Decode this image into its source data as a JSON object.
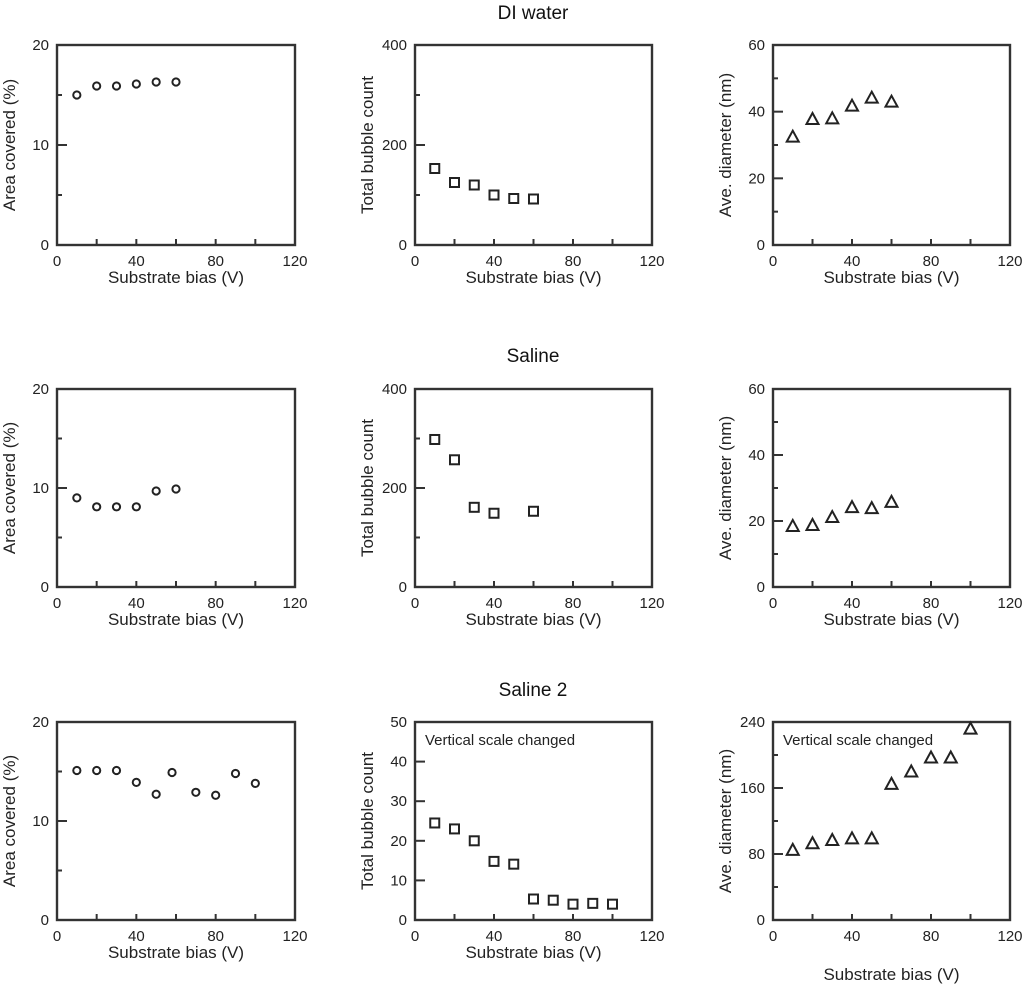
{
  "figure": {
    "row_titles": [
      "DI water",
      "Saline",
      "Saline 2"
    ]
  },
  "chart_data": [
    {
      "type": "scatter",
      "row": "DI water",
      "title": "",
      "xlabel": "Substrate bias (V)",
      "ylabel": "Area covered (%)",
      "xlim": [
        0,
        120
      ],
      "ylim": [
        0,
        20
      ],
      "xticks": [
        0,
        40,
        80,
        120
      ],
      "xminor": [
        20,
        60,
        100
      ],
      "yticks": [
        0,
        10,
        20
      ],
      "yminor": [
        5,
        15
      ],
      "marker": "circle",
      "grid": false,
      "note": "",
      "x": [
        10,
        20,
        30,
        40,
        50,
        60
      ],
      "y": [
        15.0,
        15.9,
        15.9,
        16.1,
        16.3,
        16.3
      ]
    },
    {
      "type": "scatter",
      "row": "DI water",
      "title": "",
      "xlabel": "Substrate bias (V)",
      "ylabel": "Total bubble count",
      "xlim": [
        0,
        120
      ],
      "ylim": [
        0,
        400
      ],
      "xticks": [
        0,
        40,
        80,
        120
      ],
      "xminor": [
        20,
        60,
        100
      ],
      "yticks": [
        0,
        200,
        400
      ],
      "yminor": [
        100,
        300
      ],
      "marker": "square",
      "grid": false,
      "note": "",
      "x": [
        10,
        20,
        30,
        40,
        50,
        60
      ],
      "y": [
        153,
        125,
        120,
        100,
        93,
        92
      ]
    },
    {
      "type": "scatter",
      "row": "DI water",
      "title": "",
      "xlabel": "Substrate bias (V)",
      "ylabel": "Ave. diameter (nm)",
      "xlim": [
        0,
        120
      ],
      "ylim": [
        0,
        60
      ],
      "xticks": [
        0,
        40,
        80,
        120
      ],
      "xminor": [
        20,
        60,
        100
      ],
      "yticks": [
        0,
        20,
        40,
        60
      ],
      "yminor": [
        10,
        30,
        50
      ],
      "marker": "triangle",
      "grid": false,
      "note": "",
      "x": [
        10,
        20,
        30,
        40,
        50,
        60
      ],
      "y": [
        32.5,
        37.8,
        38.0,
        41.8,
        44.2,
        43.0
      ]
    },
    {
      "type": "scatter",
      "row": "Saline",
      "title": "",
      "xlabel": "Substrate bias (V)",
      "ylabel": "Area covered (%)",
      "xlim": [
        0,
        120
      ],
      "ylim": [
        0,
        20
      ],
      "xticks": [
        0,
        40,
        80,
        120
      ],
      "xminor": [
        20,
        60,
        100
      ],
      "yticks": [
        0,
        10,
        20
      ],
      "yminor": [
        5,
        15
      ],
      "marker": "circle",
      "grid": false,
      "note": "",
      "x": [
        10,
        20,
        30,
        40,
        50,
        60
      ],
      "y": [
        9.0,
        8.1,
        8.1,
        8.1,
        9.7,
        9.9
      ]
    },
    {
      "type": "scatter",
      "row": "Saline",
      "title": "",
      "xlabel": "Substrate bias (V)",
      "ylabel": "Total bubble count",
      "xlim": [
        0,
        120
      ],
      "ylim": [
        0,
        400
      ],
      "xticks": [
        0,
        40,
        80,
        120
      ],
      "xminor": [
        20,
        60,
        100
      ],
      "yticks": [
        0,
        200,
        400
      ],
      "yminor": [
        100,
        300
      ],
      "marker": "square",
      "grid": false,
      "note": "",
      "x": [
        10,
        20,
        30,
        40,
        60
      ],
      "y": [
        298,
        257,
        161,
        149,
        153
      ]
    },
    {
      "type": "scatter",
      "row": "Saline",
      "title": "",
      "xlabel": "Substrate bias (V)",
      "ylabel": "Ave. diameter (nm)",
      "xlim": [
        0,
        120
      ],
      "ylim": [
        0,
        60
      ],
      "xticks": [
        0,
        40,
        80,
        120
      ],
      "xminor": [
        20,
        60,
        100
      ],
      "yticks": [
        0,
        20,
        40,
        60
      ],
      "yminor": [
        10,
        30,
        50
      ],
      "marker": "triangle",
      "grid": false,
      "note": "",
      "x": [
        10,
        20,
        30,
        40,
        50,
        60
      ],
      "y": [
        18.5,
        18.8,
        21.2,
        24.2,
        23.9,
        25.8
      ]
    },
    {
      "type": "scatter",
      "row": "Saline 2",
      "title": "",
      "xlabel": "Substrate bias (V)",
      "ylabel": "Area covered (%)",
      "xlim": [
        0,
        120
      ],
      "ylim": [
        0,
        20
      ],
      "xticks": [
        0,
        40,
        80,
        120
      ],
      "xminor": [
        20,
        60,
        100
      ],
      "yticks": [
        0,
        10,
        20
      ],
      "yminor": [
        5,
        15
      ],
      "marker": "circle",
      "grid": false,
      "note": "",
      "x": [
        10,
        20,
        30,
        40,
        50,
        58,
        70,
        80,
        90,
        100
      ],
      "y": [
        15.1,
        15.1,
        15.1,
        13.9,
        12.7,
        14.9,
        12.9,
        12.6,
        14.8,
        13.8
      ]
    },
    {
      "type": "scatter",
      "row": "Saline 2",
      "title": "",
      "xlabel": "Substrate bias (V)",
      "ylabel": "Total bubble count",
      "xlim": [
        0,
        120
      ],
      "ylim": [
        0,
        50
      ],
      "xticks": [
        0,
        40,
        80,
        120
      ],
      "xminor": [
        20,
        60,
        100
      ],
      "yticks": [
        0,
        10,
        20,
        30,
        40,
        50
      ],
      "yminor": [],
      "marker": "square",
      "grid": false,
      "note": "Vertical scale changed",
      "x": [
        10,
        20,
        30,
        40,
        50,
        60,
        70,
        80,
        90,
        100
      ],
      "y": [
        24.5,
        23.0,
        20.0,
        14.8,
        14.1,
        5.3,
        5.0,
        4.0,
        4.2,
        4.0
      ]
    },
    {
      "type": "scatter",
      "row": "Saline 2",
      "title": "",
      "xlabel": "Substrate bias (V)",
      "ylabel": "Ave. diameter (nm)",
      "xlim": [
        0,
        120
      ],
      "ylim": [
        0,
        240
      ],
      "xticks": [
        0,
        40,
        80,
        120
      ],
      "xminor": [
        20,
        60,
        100
      ],
      "yticks": [
        0,
        80,
        160,
        240
      ],
      "yminor": [
        40,
        120,
        200
      ],
      "marker": "triangle",
      "grid": false,
      "note": "Vertical scale changed",
      "x": [
        10,
        20,
        30,
        40,
        50,
        60,
        70,
        80,
        90,
        100
      ],
      "y": [
        85,
        93,
        97,
        99,
        99,
        165,
        180,
        197,
        197,
        232
      ]
    }
  ]
}
